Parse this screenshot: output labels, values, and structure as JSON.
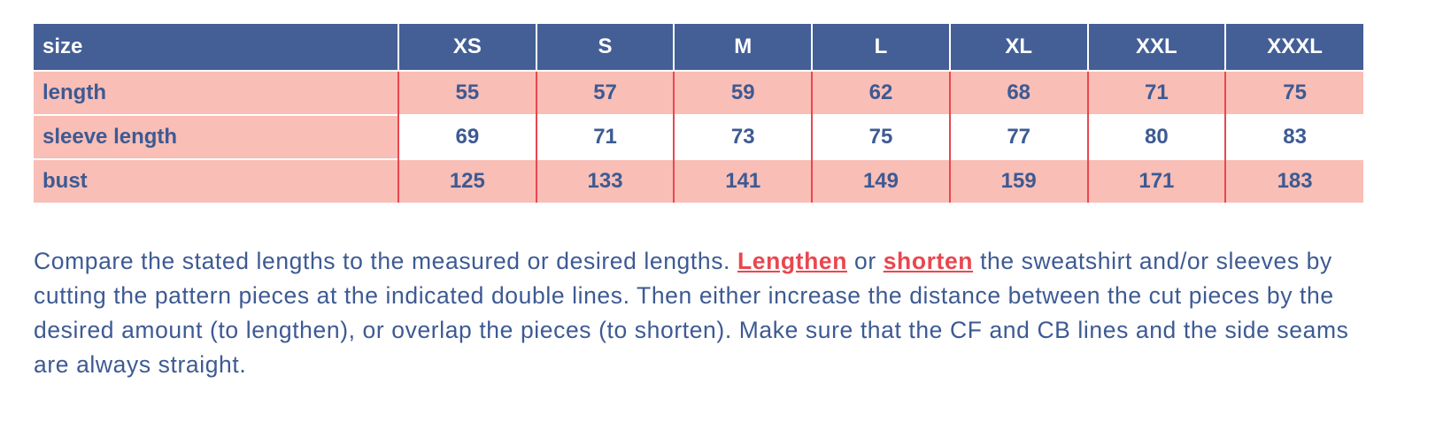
{
  "table": {
    "header": [
      "size",
      "XS",
      "S",
      "M",
      "L",
      "XL",
      "XXL",
      "XXXL"
    ],
    "rows": [
      [
        "length",
        "55",
        "57",
        "59",
        "62",
        "68",
        "71",
        "75"
      ],
      [
        "sleeve length",
        "69",
        "71",
        "73",
        "75",
        "77",
        "80",
        "83"
      ],
      [
        "bust",
        "125",
        "133",
        "141",
        "149",
        "159",
        "171",
        "183"
      ]
    ]
  },
  "paragraph": {
    "parts": [
      {
        "text": "Compare the stated lengths to the measured or desired lengths. "
      },
      {
        "text": "Lengthen",
        "link": true
      },
      {
        "text": " or "
      },
      {
        "text": "shorten",
        "link": true
      },
      {
        "text": " the sweatshirt and/or sleeves by cutting the pattern pieces at the indicated double lines. Then either increase the distance between the cut pieces by the desired amount (to lengthen), or overlap the pieces (to shorten). Make sure that the CF and CB lines and the side seams are always straight."
      }
    ]
  }
}
